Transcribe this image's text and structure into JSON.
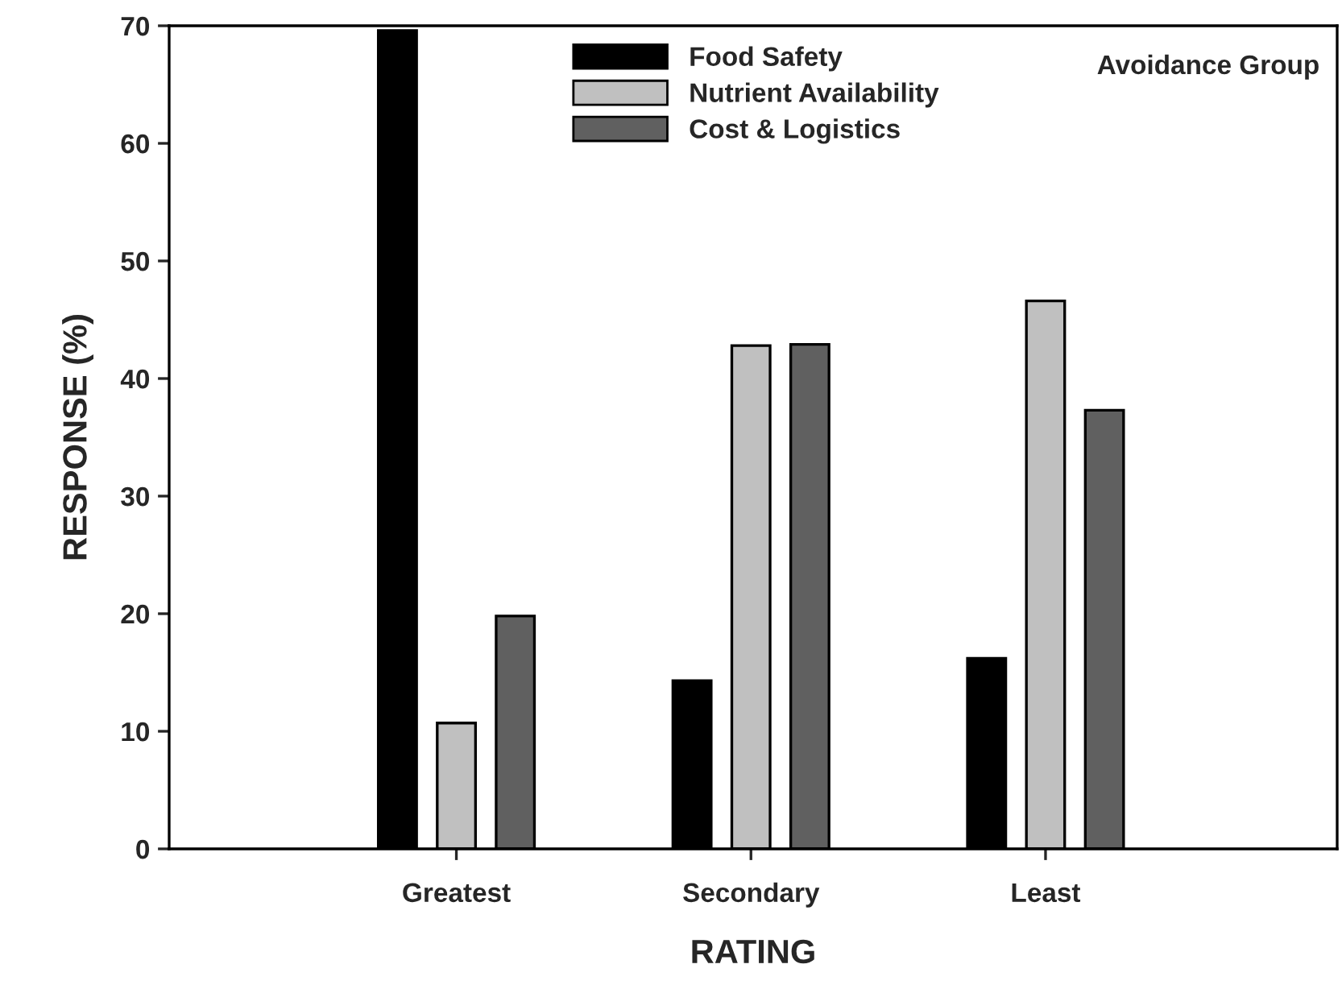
{
  "chart_data": {
    "type": "bar",
    "xlabel": "RATING",
    "ylabel": "RESPONSE (%)",
    "categories": [
      "Greatest",
      "Secondary",
      "Least"
    ],
    "series": [
      {
        "name": "Food Safety",
        "color": "#000000",
        "values": [
          69.6,
          14.3,
          16.2
        ]
      },
      {
        "name": "Nutrient Availability",
        "color": "#c0c0c0",
        "values": [
          10.7,
          42.8,
          46.6
        ]
      },
      {
        "name": "Cost & Logistics",
        "color": "#606060",
        "values": [
          19.8,
          42.9,
          37.3
        ]
      }
    ],
    "ylim": [
      0,
      70
    ],
    "yticks": [
      0,
      10,
      20,
      30,
      40,
      50,
      60,
      70
    ],
    "annotations": [
      "Avoidance Group"
    ],
    "legend": "top",
    "grid": false
  }
}
